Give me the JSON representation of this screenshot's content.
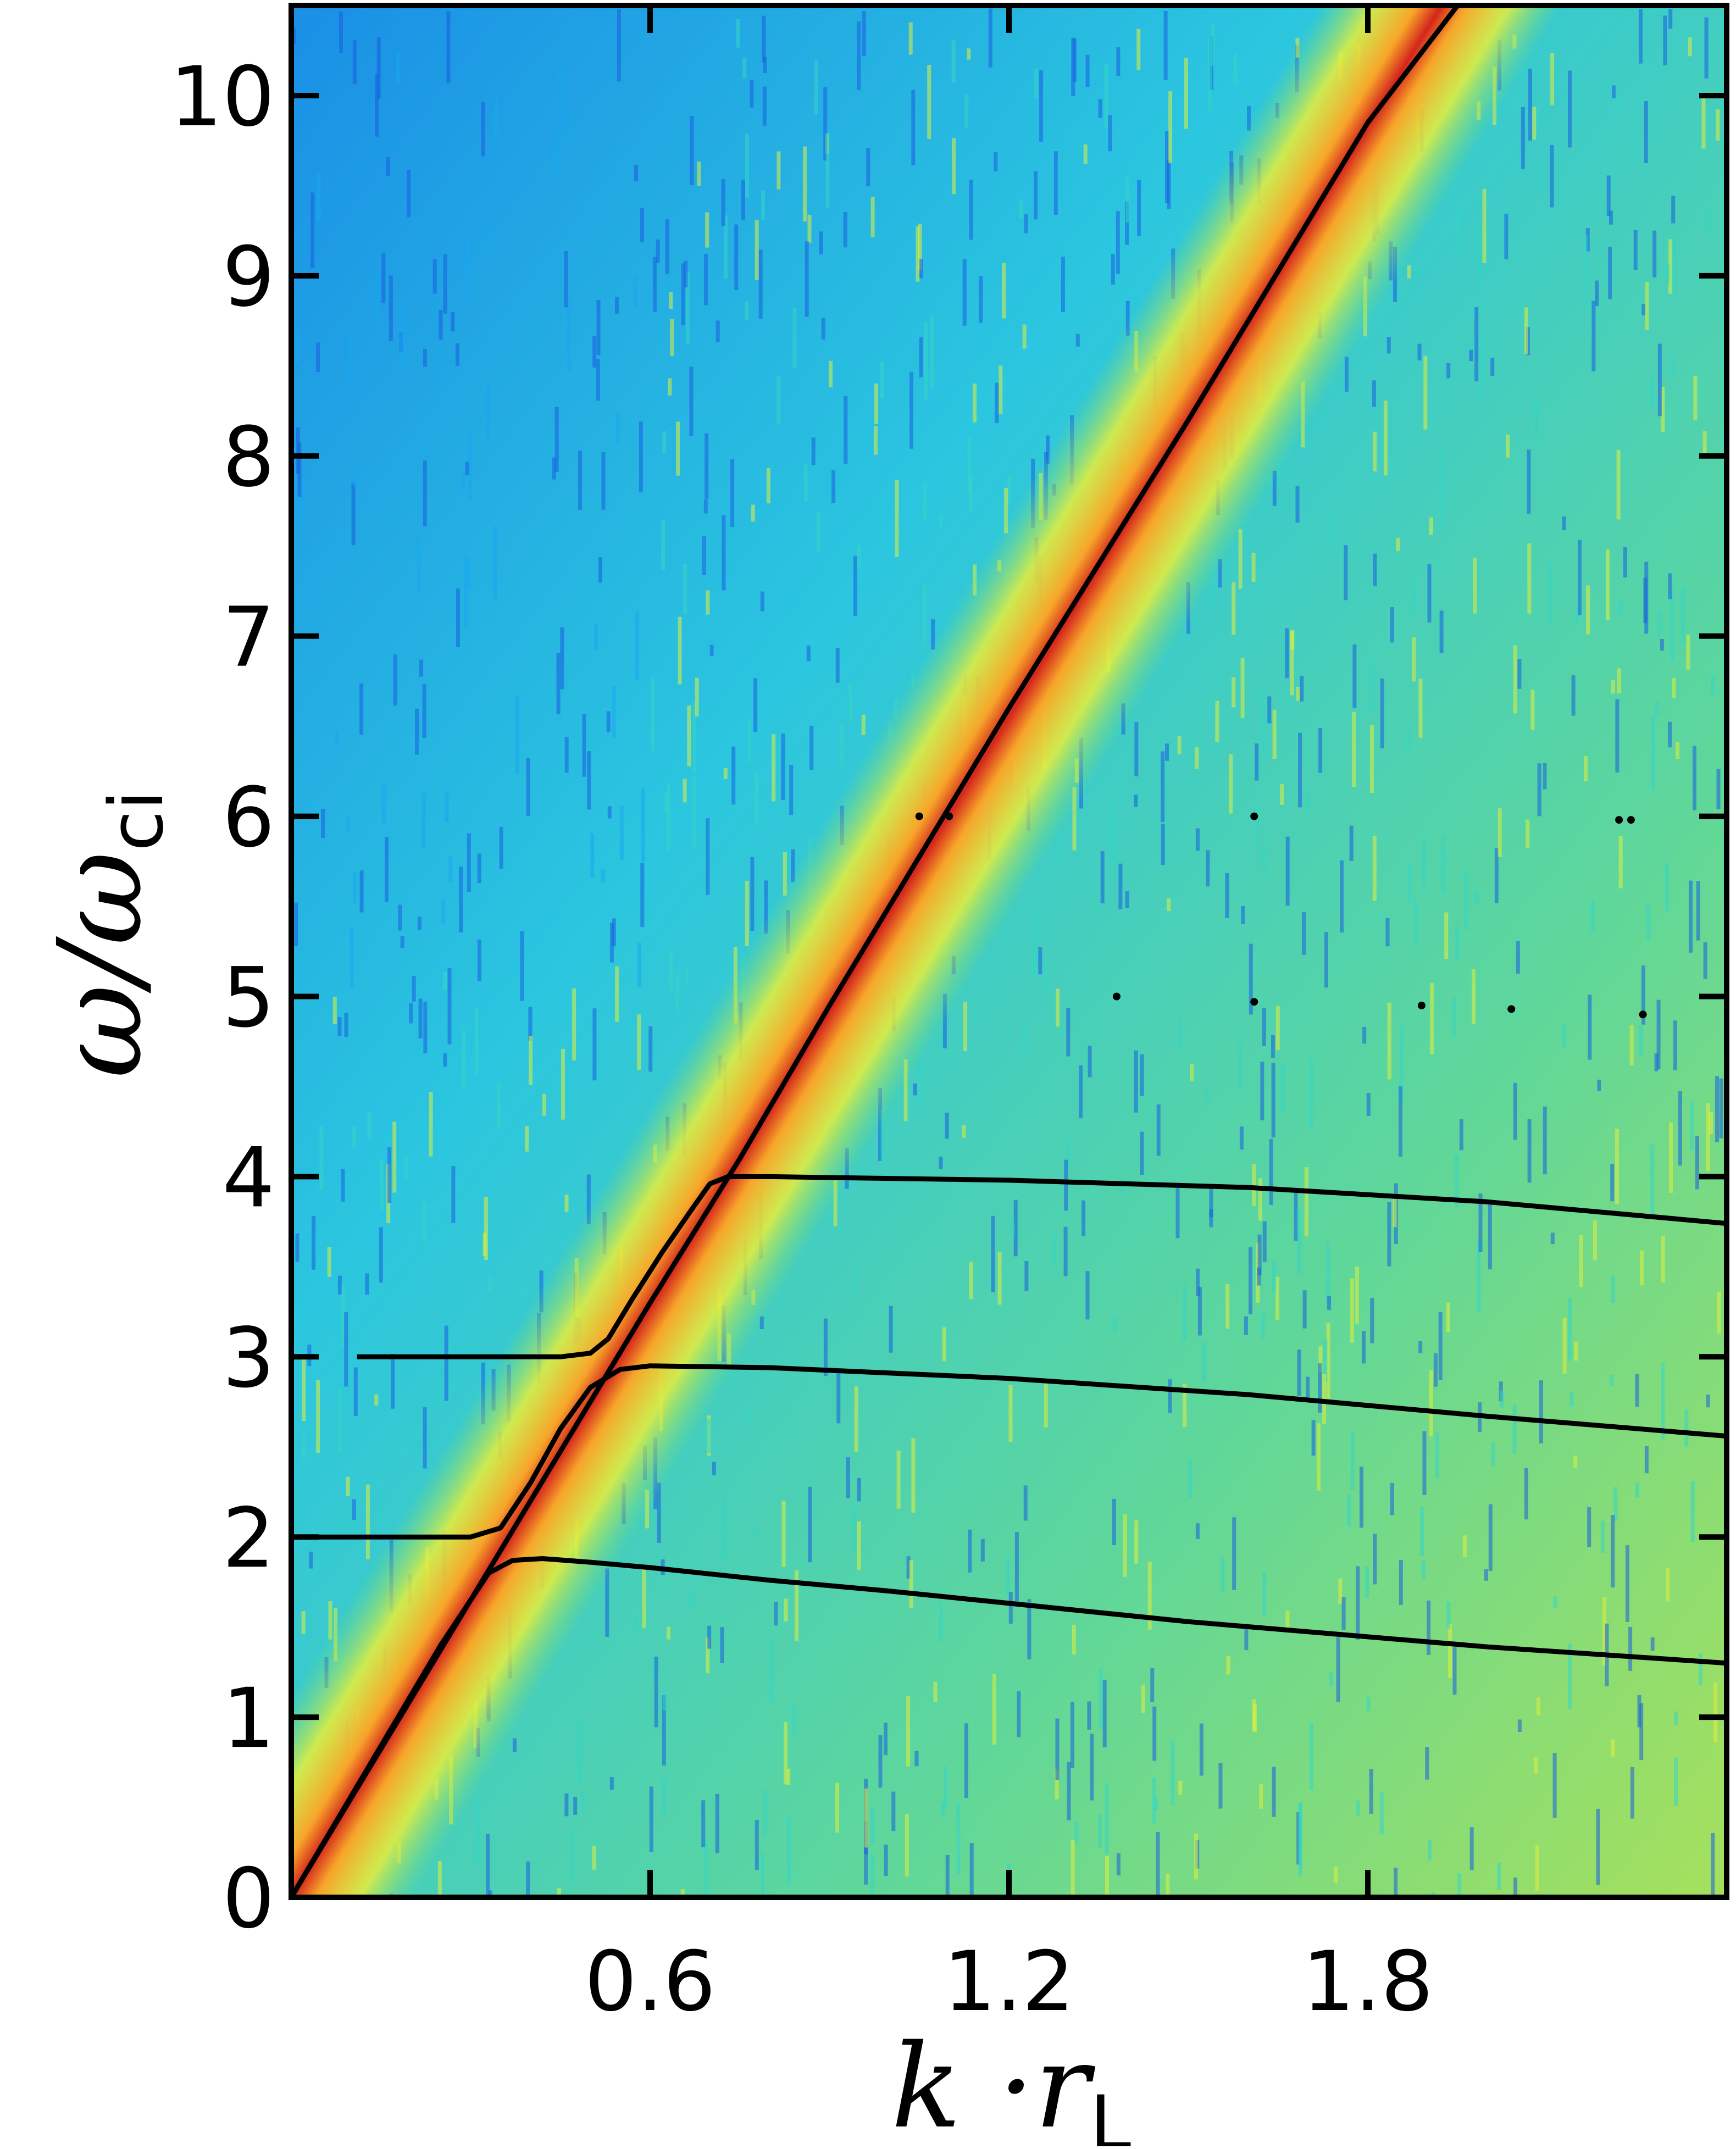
{
  "chart_data": {
    "type": "heatmap",
    "title": "",
    "xlabel": {
      "main": "k ·r",
      "sub": "L"
    },
    "ylabel": {
      "main": "ω/ω",
      "sub": "ci"
    },
    "xlim": [
      0.0,
      2.4
    ],
    "ylim": [
      0.0,
      10.5
    ],
    "xticks": [
      0.6,
      1.2,
      1.8
    ],
    "xtick_labels": [
      "0.6",
      "1.2",
      "1.8"
    ],
    "yticks": [
      0,
      1,
      2,
      3,
      4,
      5,
      6,
      7,
      8,
      9,
      10
    ],
    "ytick_labels": [
      "0",
      "1",
      "2",
      "3",
      "4",
      "5",
      "6",
      "7",
      "8",
      "9",
      "10"
    ],
    "grid": false,
    "colormap": "jet",
    "heatmap_description_colors": [
      "#1a5ee0",
      "#1aa8ef",
      "#35d6c6",
      "#8bdc6a",
      "#e4ef3a",
      "#f7a52a",
      "#d4261c"
    ],
    "ridge": {
      "slope_omega_per_k": 5.46,
      "peak_color": "#d4261c"
    },
    "series": [
      {
        "x": [
          0.0,
          0.2,
          0.4,
          0.6,
          0.75,
          0.9,
          1.2,
          1.5,
          1.8,
          1.95
        ],
        "y": [
          0.0,
          1.1,
          2.2,
          3.3,
          4.1,
          4.95,
          6.6,
          8.2,
          9.85,
          10.5
        ]
      },
      {
        "x": [
          0.0,
          0.25,
          0.3,
          0.33,
          0.37,
          0.42,
          0.5,
          0.6,
          0.8,
          1.0,
          1.5,
          2.0,
          2.4
        ],
        "y": [
          0.0,
          1.4,
          1.65,
          1.8,
          1.87,
          1.88,
          1.86,
          1.83,
          1.76,
          1.7,
          1.53,
          1.39,
          1.3
        ]
      },
      {
        "x": [
          0.0,
          0.2,
          0.3,
          0.35,
          0.4,
          0.45,
          0.5,
          0.55,
          0.6,
          0.8,
          1.2,
          1.6,
          2.0,
          2.4
        ],
        "y": [
          2.0,
          2.0,
          2.0,
          2.05,
          2.3,
          2.6,
          2.83,
          2.93,
          2.95,
          2.94,
          2.88,
          2.79,
          2.67,
          2.56
        ]
      },
      {
        "x": [
          0.11,
          0.3,
          0.45,
          0.5,
          0.53,
          0.57,
          0.62,
          0.67,
          0.7,
          0.73,
          0.8,
          1.2,
          1.6,
          2.0,
          2.4
        ],
        "y": [
          3.0,
          3.0,
          3.0,
          3.02,
          3.1,
          3.32,
          3.58,
          3.82,
          3.96,
          4.0,
          4.0,
          3.98,
          3.94,
          3.86,
          3.74
        ]
      }
    ],
    "scattered_points": [
      {
        "x": 1.05,
        "y": 6.0
      },
      {
        "x": 1.1,
        "y": 6.0
      },
      {
        "x": 1.61,
        "y": 6.0
      },
      {
        "x": 2.22,
        "y": 5.98
      },
      {
        "x": 2.24,
        "y": 5.98
      },
      {
        "x": 1.38,
        "y": 5.0
      },
      {
        "x": 1.61,
        "y": 4.97
      },
      {
        "x": 1.89,
        "y": 4.95
      },
      {
        "x": 2.04,
        "y": 4.93
      },
      {
        "x": 2.26,
        "y": 4.9
      }
    ]
  }
}
